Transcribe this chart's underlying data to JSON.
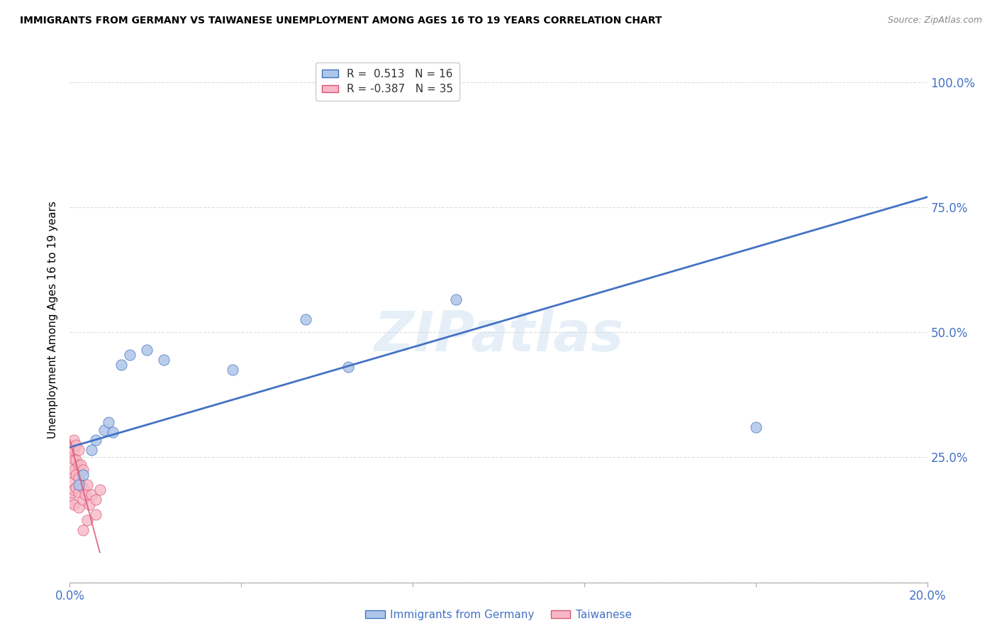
{
  "title": "IMMIGRANTS FROM GERMANY VS TAIWANESE UNEMPLOYMENT AMONG AGES 16 TO 19 YEARS CORRELATION CHART",
  "source": "Source: ZipAtlas.com",
  "ylabel": "Unemployment Among Ages 16 to 19 years",
  "watermark": "ZIPatlas",
  "legend_entries": [
    {
      "label": "R =  0.513   N = 16",
      "color": "#aec6e8"
    },
    {
      "label": "R = -0.387   N = 35",
      "color": "#f7b8c8"
    }
  ],
  "blue_scatter_x": [
    0.002,
    0.003,
    0.005,
    0.006,
    0.008,
    0.009,
    0.01,
    0.012,
    0.014,
    0.018,
    0.022,
    0.038,
    0.055,
    0.065,
    0.09,
    0.16
  ],
  "blue_scatter_y": [
    0.195,
    0.215,
    0.265,
    0.285,
    0.305,
    0.32,
    0.3,
    0.435,
    0.455,
    0.465,
    0.445,
    0.425,
    0.525,
    0.43,
    0.565,
    0.31
  ],
  "pink_scatter_x": [
    0.0005,
    0.0005,
    0.0005,
    0.0005,
    0.0005,
    0.0005,
    0.001,
    0.001,
    0.001,
    0.001,
    0.001,
    0.001,
    0.0015,
    0.0015,
    0.0015,
    0.0015,
    0.002,
    0.002,
    0.002,
    0.002,
    0.002,
    0.0025,
    0.0025,
    0.003,
    0.003,
    0.003,
    0.003,
    0.0035,
    0.004,
    0.004,
    0.0045,
    0.005,
    0.006,
    0.006,
    0.007
  ],
  "pink_scatter_y": [
    0.27,
    0.25,
    0.22,
    0.2,
    0.18,
    0.16,
    0.285,
    0.265,
    0.245,
    0.225,
    0.185,
    0.155,
    0.275,
    0.245,
    0.215,
    0.19,
    0.265,
    0.235,
    0.21,
    0.18,
    0.15,
    0.235,
    0.195,
    0.225,
    0.19,
    0.165,
    0.105,
    0.175,
    0.195,
    0.125,
    0.155,
    0.175,
    0.165,
    0.135,
    0.185
  ],
  "blue_line_x": [
    0.0,
    0.2
  ],
  "blue_line_y": [
    0.27,
    0.77
  ],
  "pink_line_x": [
    0.0,
    0.007
  ],
  "pink_line_y": [
    0.285,
    0.06
  ],
  "xlim": [
    0.0,
    0.2
  ],
  "ylim": [
    0.0,
    1.05
  ],
  "xticks": [
    0.0,
    0.04,
    0.08,
    0.12,
    0.16,
    0.2
  ],
  "xtick_labels": [
    "0.0%",
    "",
    "",
    "",
    "",
    "20.0%"
  ],
  "yticks": [
    0.0,
    0.25,
    0.5,
    0.75,
    1.0
  ],
  "right_ytick_labels": [
    "",
    "25.0%",
    "50.0%",
    "75.0%",
    "100.0%"
  ],
  "grid_color": "#d5d5d5",
  "blue_color": "#aec6e8",
  "pink_color": "#f7b8c8",
  "blue_line_color": "#4472c4",
  "pink_line_color": "#d9536e",
  "tick_label_color": "#4472c4",
  "scatter_size": 120,
  "bottom_legend": [
    "Immigrants from Germany",
    "Taiwanese"
  ]
}
